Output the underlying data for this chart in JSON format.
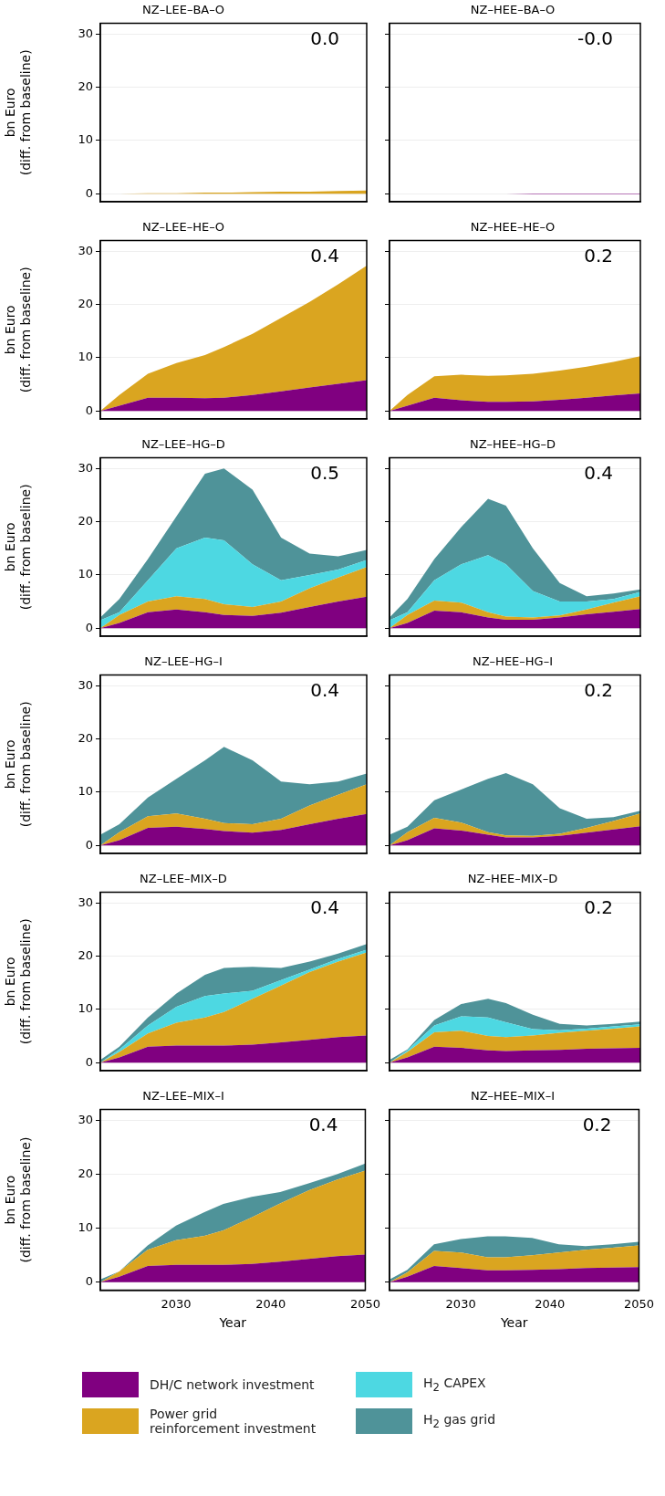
{
  "chart_data": [
    {
      "type": "area",
      "title": "NZ–LEE–BA–O",
      "ylabel": "bn Euro\n(diff. from baseline)",
      "annotations": [
        "0.0"
      ],
      "stacked": true,
      "x": [
        2022,
        2024,
        2027,
        2030,
        2033,
        2035,
        2038,
        2041,
        2044,
        2047,
        2050
      ],
      "xlim": [
        2022,
        2050
      ],
      "xticks": [
        2030,
        2040,
        2050
      ],
      "ylim": [
        -1.5,
        32
      ],
      "yticks": [
        0,
        10,
        20,
        30
      ],
      "grid": "y",
      "tick_labels": "y",
      "series": [
        {
          "color": "#daa520",
          "values": [
            0,
            0,
            0.1,
            0.1,
            0.2,
            0.2,
            0.3,
            0.4,
            0.4,
            0.5,
            0.6
          ]
        }
      ]
    },
    {
      "type": "area",
      "title": "NZ–HEE–BA–O",
      "annotations": [
        "-0.0"
      ],
      "stacked": true,
      "x": [
        2022,
        2024,
        2027,
        2030,
        2033,
        2035,
        2038,
        2041,
        2044,
        2047,
        2050
      ],
      "xlim": [
        2022,
        2050
      ],
      "xticks": [
        2030,
        2040,
        2050
      ],
      "ylim": [
        -1.5,
        32
      ],
      "yticks": [
        0,
        10,
        20,
        30
      ],
      "grid": "y",
      "tick_labels": false,
      "series": [
        {
          "color": "#800080",
          "values": [
            0,
            0,
            0,
            0,
            0,
            0,
            -0.1,
            -0.1,
            -0.1,
            -0.1,
            -0.1
          ]
        }
      ]
    },
    {
      "type": "area",
      "title": "NZ–LEE–HE–O",
      "ylabel": "bn Euro\n(diff. from baseline)",
      "annotations": [
        "0.4"
      ],
      "stacked": true,
      "x": [
        2022,
        2024,
        2027,
        2030,
        2033,
        2035,
        2038,
        2041,
        2044,
        2047,
        2050
      ],
      "xlim": [
        2022,
        2050
      ],
      "xticks": [
        2030,
        2040,
        2050
      ],
      "ylim": [
        -1.5,
        32
      ],
      "yticks": [
        0,
        10,
        20,
        30
      ],
      "grid": "y",
      "tick_labels": "y",
      "series": [
        {
          "color": "#800080",
          "values": [
            0,
            1,
            2.5,
            2.5,
            2.4,
            2.5,
            3,
            3.7,
            4.4,
            5.1,
            5.8
          ]
        },
        {
          "color": "#daa520",
          "values": [
            0,
            2,
            4.5,
            6.5,
            8.1,
            9.5,
            11.5,
            13.8,
            16.1,
            18.7,
            21.5
          ]
        }
      ]
    },
    {
      "type": "area",
      "title": "NZ–HEE–HE–O",
      "annotations": [
        "0.2"
      ],
      "stacked": true,
      "x": [
        2022,
        2024,
        2027,
        2030,
        2033,
        2035,
        2038,
        2041,
        2044,
        2047,
        2050
      ],
      "xlim": [
        2022,
        2050
      ],
      "xticks": [
        2030,
        2040,
        2050
      ],
      "ylim": [
        -1.5,
        32
      ],
      "yticks": [
        0,
        10,
        20,
        30
      ],
      "grid": "y",
      "tick_labels": false,
      "series": [
        {
          "color": "#800080",
          "values": [
            0,
            1,
            2.5,
            2,
            1.7,
            1.7,
            1.8,
            2.1,
            2.5,
            2.9,
            3.3
          ]
        },
        {
          "color": "#daa520",
          "values": [
            0,
            2,
            4,
            4.8,
            4.9,
            5,
            5.2,
            5.5,
            5.8,
            6.3,
            7
          ]
        }
      ]
    },
    {
      "type": "area",
      "title": "NZ–LEE–HG–D",
      "ylabel": "bn Euro\n(diff. from baseline)",
      "annotations": [
        "0.5"
      ],
      "stacked": true,
      "x": [
        2022,
        2024,
        2027,
        2030,
        2033,
        2035,
        2038,
        2041,
        2044,
        2047,
        2050
      ],
      "xlim": [
        2022,
        2050
      ],
      "xticks": [
        2030,
        2040,
        2050
      ],
      "ylim": [
        -1.5,
        32
      ],
      "yticks": [
        0,
        10,
        20,
        30
      ],
      "grid": "y",
      "tick_labels": "y",
      "series": [
        {
          "color": "#800080",
          "values": [
            0,
            1,
            3,
            3.5,
            3,
            2.5,
            2.3,
            2.9,
            4,
            5,
            5.9
          ]
        },
        {
          "color": "#daa520",
          "values": [
            0,
            1.5,
            2,
            2.5,
            2.5,
            2,
            1.7,
            2.1,
            3.5,
            4.5,
            5.6
          ]
        },
        {
          "color": "#4dd8e2",
          "values": [
            1.5,
            0.5,
            4,
            9,
            11.5,
            12,
            8,
            4,
            2.5,
            1.5,
            1.3
          ]
        },
        {
          "color": "#4f9399",
          "values": [
            0.5,
            2.5,
            4,
            6,
            12,
            13.5,
            14,
            8,
            4,
            2.5,
            1.9
          ]
        }
      ]
    },
    {
      "type": "area",
      "title": "NZ–HEE–HG–D",
      "annotations": [
        "0.4"
      ],
      "stacked": true,
      "x": [
        2022,
        2024,
        2027,
        2030,
        2033,
        2035,
        2038,
        2041,
        2044,
        2047,
        2050
      ],
      "xlim": [
        2022,
        2050
      ],
      "xticks": [
        2030,
        2040,
        2050
      ],
      "ylim": [
        -1.5,
        32
      ],
      "yticks": [
        0,
        10,
        20,
        30
      ],
      "grid": "y",
      "tick_labels": false,
      "series": [
        {
          "color": "#800080",
          "values": [
            0,
            1,
            3.3,
            3,
            2,
            1.6,
            1.6,
            2,
            2.6,
            3.1,
            3.6
          ]
        },
        {
          "color": "#daa520",
          "values": [
            0,
            1.5,
            1.9,
            1.8,
            1,
            0.6,
            0.4,
            0.4,
            0.9,
            1.7,
            2.4
          ]
        },
        {
          "color": "#4dd8e2",
          "values": [
            1.5,
            0.5,
            3.8,
            7.2,
            10.7,
            9.8,
            5,
            2.6,
            1.5,
            0.7,
            0.8
          ]
        },
        {
          "color": "#4f9399",
          "values": [
            0.5,
            2.5,
            4,
            7,
            10.6,
            11,
            8,
            3.5,
            1,
            1,
            0.5
          ]
        }
      ]
    },
    {
      "type": "area",
      "title": "NZ–LEE–HG–I",
      "ylabel": "bn Euro\n(diff. from baseline)",
      "annotations": [
        "0.4"
      ],
      "stacked": true,
      "x": [
        2022,
        2024,
        2027,
        2030,
        2033,
        2035,
        2038,
        2041,
        2044,
        2047,
        2050
      ],
      "xlim": [
        2022,
        2050
      ],
      "xticks": [
        2030,
        2040,
        2050
      ],
      "ylim": [
        -1.5,
        32
      ],
      "yticks": [
        0,
        10,
        20,
        30
      ],
      "grid": "y",
      "tick_labels": "y",
      "series": [
        {
          "color": "#800080",
          "values": [
            0,
            1,
            3.3,
            3.5,
            3.1,
            2.7,
            2.4,
            2.9,
            4,
            5,
            5.9
          ]
        },
        {
          "color": "#daa520",
          "values": [
            0,
            1.5,
            2.2,
            2.5,
            1.9,
            1.5,
            1.6,
            2.1,
            3.5,
            4.5,
            5.6
          ]
        },
        {
          "color": "#4f9399",
          "values": [
            2,
            1.5,
            3.5,
            6.5,
            11,
            14.3,
            12,
            7,
            4,
            2.5,
            2
          ]
        }
      ]
    },
    {
      "type": "area",
      "title": "NZ–HEE–HG–I",
      "annotations": [
        "0.2"
      ],
      "stacked": true,
      "x": [
        2022,
        2024,
        2027,
        2030,
        2033,
        2035,
        2038,
        2041,
        2044,
        2047,
        2050
      ],
      "xlim": [
        2022,
        2050
      ],
      "xticks": [
        2030,
        2040,
        2050
      ],
      "ylim": [
        -1.5,
        32
      ],
      "yticks": [
        0,
        10,
        20,
        30
      ],
      "grid": "y",
      "tick_labels": false,
      "series": [
        {
          "color": "#800080",
          "values": [
            0,
            1,
            3.2,
            2.8,
            2,
            1.5,
            1.5,
            1.8,
            2.4,
            3,
            3.6
          ]
        },
        {
          "color": "#daa520",
          "values": [
            0,
            1.5,
            2,
            1.5,
            0.5,
            0.4,
            0.3,
            0.4,
            0.9,
            1.6,
            2.4
          ]
        },
        {
          "color": "#4f9399",
          "values": [
            2,
            1,
            3.3,
            6.2,
            10,
            11.7,
            9.7,
            4.8,
            1.7,
            0.7,
            0.5
          ]
        }
      ]
    },
    {
      "type": "area",
      "title": "NZ–LEE–MIX–D",
      "ylabel": "bn Euro\n(diff. from baseline)",
      "annotations": [
        "0.4"
      ],
      "stacked": true,
      "x": [
        2022,
        2024,
        2027,
        2030,
        2033,
        2035,
        2038,
        2041,
        2044,
        2047,
        2050
      ],
      "xlim": [
        2022,
        2050
      ],
      "xticks": [
        2030,
        2040,
        2050
      ],
      "ylim": [
        -1.5,
        32
      ],
      "yticks": [
        0,
        10,
        20,
        30
      ],
      "grid": "y",
      "tick_labels": "y",
      "series": [
        {
          "color": "#800080",
          "values": [
            0,
            1,
            3,
            3.2,
            3.2,
            3.2,
            3.4,
            3.8,
            4.3,
            4.8,
            5.1
          ]
        },
        {
          "color": "#daa520",
          "values": [
            0,
            1,
            2.5,
            4.3,
            5.3,
            6.3,
            8.6,
            10.7,
            12.7,
            14.2,
            15.6
          ]
        },
        {
          "color": "#4dd8e2",
          "values": [
            0,
            0.5,
            1.5,
            3,
            4,
            3.5,
            1.5,
            1,
            0.5,
            0.5,
            0.5
          ]
        },
        {
          "color": "#4f9399",
          "values": [
            0.5,
            0.5,
            1.5,
            2.5,
            4,
            4.8,
            4.5,
            2.3,
            1.5,
            1,
            1.1
          ]
        }
      ]
    },
    {
      "type": "area",
      "title": "NZ–HEE–MIX–D",
      "annotations": [
        "0.2"
      ],
      "stacked": true,
      "legend": "bottom",
      "x": [
        2022,
        2024,
        2027,
        2030,
        2033,
        2035,
        2038,
        2041,
        2044,
        2047,
        2050
      ],
      "xlim": [
        2022,
        2050
      ],
      "xticks": [
        2030,
        2040,
        2050
      ],
      "ylim": [
        -1.5,
        32
      ],
      "yticks": [
        0,
        10,
        20,
        30
      ],
      "grid": "y",
      "tick_labels": false,
      "series": [
        {
          "name": "DH/C network investment",
          "color": "#800080",
          "values": [
            0,
            1,
            3,
            2.8,
            2.3,
            2.2,
            2.3,
            2.4,
            2.6,
            2.7,
            2.8
          ]
        },
        {
          "name": "Power grid\nreinforcement investment",
          "color": "#daa520",
          "values": [
            0,
            1,
            2.7,
            3.2,
            2.7,
            2.6,
            2.8,
            3.2,
            3.4,
            3.7,
            4
          ]
        },
        {
          "name": "H$_{2}$ CAPEX",
          "color": "#4dd8e2",
          "values": [
            0,
            0.3,
            1.3,
            2.7,
            3.5,
            2.8,
            1.2,
            0.5,
            0.4,
            0.4,
            0.4
          ]
        },
        {
          "name": "H$_{2}$ gas grid",
          "color": "#4f9399",
          "values": [
            0.5,
            0.2,
            1,
            2.3,
            3.5,
            3.6,
            2.7,
            1.2,
            0.6,
            0.5,
            0.5
          ]
        }
      ]
    },
    {
      "type": "area",
      "title": "NZ–LEE–MIX–I",
      "ylabel": "bn Euro\n(diff. from baseline)",
      "xlabel": "Year",
      "annotations": [
        "0.4"
      ],
      "stacked": true,
      "x": [
        2022,
        2024,
        2027,
        2030,
        2033,
        2035,
        2038,
        2041,
        2044,
        2047,
        2050
      ],
      "xlim": [
        2022,
        2050
      ],
      "xticks": [
        2030,
        2040,
        2050
      ],
      "ylim": [
        -1.5,
        32
      ],
      "yticks": [
        0,
        10,
        20,
        30
      ],
      "grid": "y",
      "series": [
        {
          "color": "#800080",
          "values": [
            0,
            1,
            3,
            3.2,
            3.2,
            3.2,
            3.4,
            3.8,
            4.3,
            4.8,
            5.1
          ]
        },
        {
          "color": "#daa520",
          "values": [
            0,
            1,
            3,
            4.6,
            5.4,
            6.4,
            8.6,
            10.8,
            12.7,
            14.2,
            15.6
          ]
        },
        {
          "color": "#4f9399",
          "values": [
            0.5,
            0,
            0.8,
            2.7,
            4.4,
            4.9,
            3.8,
            2.1,
            1.3,
            1,
            1.3
          ]
        }
      ]
    },
    {
      "type": "area",
      "title": "NZ–HEE–MIX–I",
      "xlabel": "Year",
      "annotations": [
        "0.2"
      ],
      "stacked": true,
      "x": [
        2022,
        2024,
        2027,
        2030,
        2033,
        2035,
        2038,
        2041,
        2044,
        2047,
        2050
      ],
      "xlim": [
        2022,
        2050
      ],
      "xticks": [
        2030,
        2040,
        2050
      ],
      "ylim": [
        -1.5,
        32
      ],
      "yticks": [
        0,
        10,
        20,
        30
      ],
      "grid": "y",
      "tick_labels": "x",
      "series": [
        {
          "color": "#800080",
          "values": [
            0,
            1,
            3,
            2.6,
            2.2,
            2.2,
            2.3,
            2.4,
            2.6,
            2.7,
            2.8
          ]
        },
        {
          "color": "#daa520",
          "values": [
            0,
            0.8,
            2.8,
            2.9,
            2.4,
            2.4,
            2.7,
            3.1,
            3.4,
            3.7,
            4
          ]
        },
        {
          "color": "#4f9399",
          "values": [
            0.5,
            0.5,
            1.2,
            2.5,
            3.9,
            3.9,
            3.2,
            1.5,
            0.7,
            0.6,
            0.7
          ]
        }
      ]
    }
  ]
}
